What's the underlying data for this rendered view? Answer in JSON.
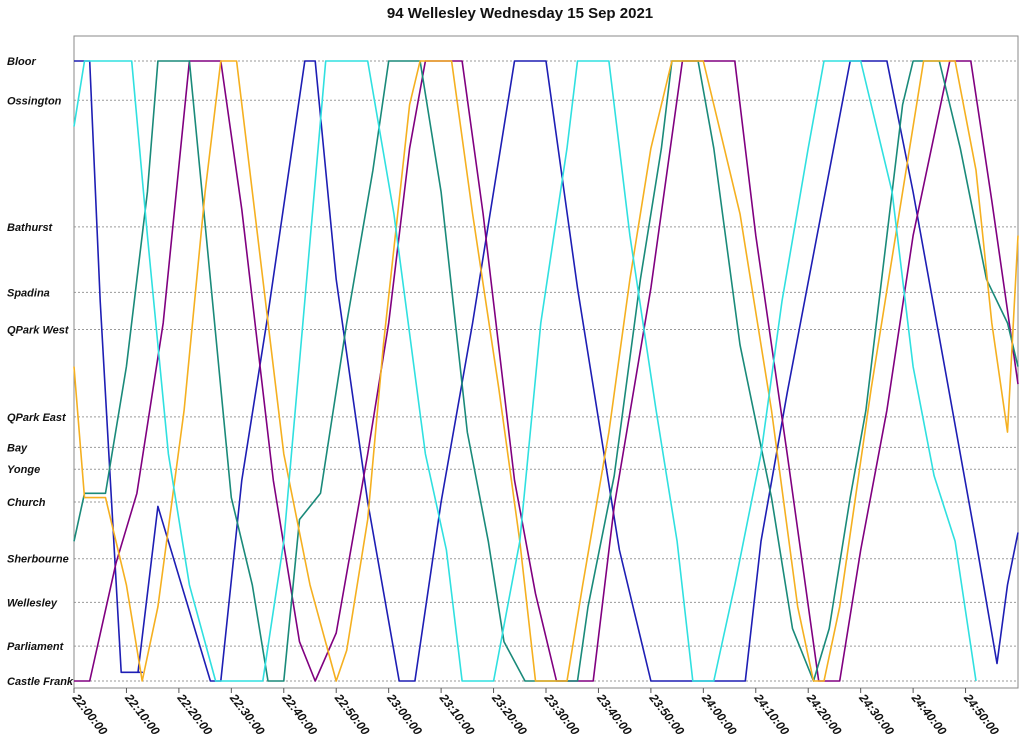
{
  "chart_data": {
    "type": "line",
    "title": "94 Wellesley Wednesday 15 Sep 2021",
    "xlabel": "",
    "ylabel": "",
    "grid": true,
    "x_ticks": [
      "22:00:00",
      "22:10:00",
      "22:20:00",
      "22:30:00",
      "22:40:00",
      "22:50:00",
      "23:00:00",
      "23:10:00",
      "23:20:00",
      "23:30:00",
      "23:40:00",
      "23:50:00",
      "24:00:00",
      "24:10:00",
      "24:20:00",
      "24:30:00",
      "24:40:00",
      "24:50:00"
    ],
    "xlim_minutes": [
      0,
      180
    ],
    "stops": [
      {
        "name": "Bloor",
        "pos": 0
      },
      {
        "name": "Ossington",
        "pos": 0.9
      },
      {
        "name": "Bathurst",
        "pos": 3.8
      },
      {
        "name": "Spadina",
        "pos": 5.3
      },
      {
        "name": "QPark West",
        "pos": 6.15
      },
      {
        "name": "QPark East",
        "pos": 8.15
      },
      {
        "name": "Bay",
        "pos": 8.85
      },
      {
        "name": "Yonge",
        "pos": 9.35
      },
      {
        "name": "Church",
        "pos": 10.1
      },
      {
        "name": "Sherbourne",
        "pos": 11.4
      },
      {
        "name": "Wellesley",
        "pos": 12.4
      },
      {
        "name": "Parliament",
        "pos": 13.4
      },
      {
        "name": "Castle Frank",
        "pos": 14.2
      }
    ],
    "series": [
      {
        "color": "#1e1eb4",
        "points": [
          [
            -1,
            0.0
          ],
          [
            3,
            0.0
          ],
          [
            5,
            5.5
          ],
          [
            9,
            14.0
          ],
          [
            13,
            14.0
          ],
          [
            12.2,
            14.0
          ],
          [
            16,
            10.2
          ],
          [
            26,
            14.2
          ],
          [
            28,
            14.2
          ],
          [
            32,
            9.6
          ],
          [
            37,
            5.8
          ],
          [
            44,
            0.0
          ],
          [
            46,
            0.0
          ],
          [
            50,
            5.0
          ],
          [
            56,
            10.1
          ],
          [
            62,
            14.2
          ],
          [
            65,
            14.2
          ],
          [
            70,
            10.1
          ],
          [
            76,
            6.0
          ],
          [
            84,
            0.0
          ],
          [
            90,
            0.0
          ],
          [
            96,
            5.2
          ],
          [
            104,
            11.2
          ],
          [
            110,
            14.2
          ],
          [
            128,
            14.2
          ],
          [
            131,
            11.0
          ],
          [
            136,
            7.6
          ],
          [
            142,
            3.8
          ],
          [
            148,
            0.0
          ],
          [
            155,
            0.0
          ],
          [
            160,
            3.0
          ],
          [
            166,
            7.0
          ],
          [
            172,
            11.0
          ],
          [
            176,
            13.8
          ],
          [
            178,
            12.0
          ],
          [
            181,
            10.8
          ]
        ]
      },
      {
        "color": "#800080",
        "points": [
          [
            -1,
            14.2
          ],
          [
            3,
            14.2
          ],
          [
            8,
            11.5
          ],
          [
            12,
            9.9
          ],
          [
            17,
            6.0
          ],
          [
            22,
            0.0
          ],
          [
            25,
            0.0
          ],
          [
            28,
            0.0
          ],
          [
            32,
            3.4
          ],
          [
            38,
            9.6
          ],
          [
            43,
            13.3
          ],
          [
            46,
            14.2
          ],
          [
            50,
            13.1
          ],
          [
            56,
            9.0
          ],
          [
            60,
            6.0
          ],
          [
            64,
            2.0
          ],
          [
            67,
            0.0
          ],
          [
            74,
            0.0
          ],
          [
            78,
            3.5
          ],
          [
            84,
            9.6
          ],
          [
            88,
            12.2
          ],
          [
            92,
            14.2
          ],
          [
            99,
            14.2
          ],
          [
            103,
            10.2
          ],
          [
            110,
            5.2
          ],
          [
            116,
            0.0
          ],
          [
            126,
            0.0
          ],
          [
            130,
            4.0
          ],
          [
            136,
            9.0
          ],
          [
            142,
            14.2
          ],
          [
            146,
            14.2
          ],
          [
            150,
            11.2
          ],
          [
            155,
            8.0
          ],
          [
            160,
            4.0
          ],
          [
            167,
            0.0
          ],
          [
            171,
            0.0
          ],
          [
            175,
            3.2
          ],
          [
            180,
            7.4
          ]
        ]
      },
      {
        "color": "#1a8a7a",
        "points": [
          [
            -1,
            11.0
          ],
          [
            2,
            9.9
          ],
          [
            6,
            9.9
          ],
          [
            10,
            7.0
          ],
          [
            14,
            3.0
          ],
          [
            16,
            0.0
          ],
          [
            22,
            0.0
          ],
          [
            26,
            5.0
          ],
          [
            30,
            10.0
          ],
          [
            34,
            12.0
          ],
          [
            37,
            14.2
          ],
          [
            40,
            14.2
          ],
          [
            43,
            10.5
          ],
          [
            47,
            9.9
          ],
          [
            52,
            6.0
          ],
          [
            57,
            2.5
          ],
          [
            60,
            0.0
          ],
          [
            66,
            0.0
          ],
          [
            70,
            3.0
          ],
          [
            75,
            8.5
          ],
          [
            79,
            11.0
          ],
          [
            82,
            13.3
          ],
          [
            86,
            14.2
          ],
          [
            96,
            14.2
          ],
          [
            98,
            12.5
          ],
          [
            103,
            9.5
          ],
          [
            108,
            5.0
          ],
          [
            112,
            2.0
          ],
          [
            114,
            0.0
          ],
          [
            119,
            0.0
          ],
          [
            122,
            2.0
          ],
          [
            127,
            6.5
          ],
          [
            133,
            10.0
          ],
          [
            137,
            13.0
          ],
          [
            141,
            14.2
          ],
          [
            144,
            13.0
          ],
          [
            148,
            10.0
          ],
          [
            151,
            8.0
          ],
          [
            155,
            4.0
          ],
          [
            158,
            1.0
          ],
          [
            160,
            0.0
          ],
          [
            165,
            0.0
          ],
          [
            169,
            2.0
          ],
          [
            174,
            5.0
          ],
          [
            178,
            6.0
          ],
          [
            181,
            7.0
          ]
        ]
      },
      {
        "color": "#f5b020",
        "points": [
          [
            -1,
            7.0
          ],
          [
            2,
            10.0
          ],
          [
            6,
            10.0
          ],
          [
            10,
            12.0
          ],
          [
            13,
            14.2
          ],
          [
            16,
            12.5
          ],
          [
            21,
            8.0
          ],
          [
            25,
            3.0
          ],
          [
            28,
            0.0
          ],
          [
            31,
            0.0
          ],
          [
            35,
            4.0
          ],
          [
            40,
            9.0
          ],
          [
            45,
            12.0
          ],
          [
            50,
            14.2
          ],
          [
            52,
            13.5
          ],
          [
            56,
            10.5
          ],
          [
            59,
            6.5
          ],
          [
            64,
            1.0
          ],
          [
            66,
            0.0
          ],
          [
            72,
            0.0
          ],
          [
            76,
            3.5
          ],
          [
            81,
            7.5
          ],
          [
            85,
            11.0
          ],
          [
            88,
            14.2
          ],
          [
            94,
            14.2
          ],
          [
            97,
            12.0
          ],
          [
            102,
            8.5
          ],
          [
            106,
            5.0
          ],
          [
            110,
            2.0
          ],
          [
            114,
            0.0
          ],
          [
            120,
            0.0
          ],
          [
            124,
            2.0
          ],
          [
            127,
            3.5
          ],
          [
            133,
            8.0
          ],
          [
            138,
            12.5
          ],
          [
            141,
            14.2
          ],
          [
            143,
            14.2
          ],
          [
            146,
            12.5
          ],
          [
            152,
            7.5
          ],
          [
            158,
            3.0
          ],
          [
            162,
            0.0
          ],
          [
            168,
            0.0
          ],
          [
            172,
            2.5
          ],
          [
            175,
            6.0
          ],
          [
            178,
            8.5
          ],
          [
            181,
            4.0
          ]
        ]
      },
      {
        "color": "#30e0e0",
        "points": [
          [
            -1,
            1.5
          ],
          [
            2,
            0.0
          ],
          [
            4,
            0.0
          ],
          [
            8,
            0.0
          ],
          [
            11,
            0.0
          ],
          [
            14,
            4.0
          ],
          [
            18,
            9.0
          ],
          [
            22,
            12.0
          ],
          [
            27,
            14.2
          ],
          [
            36,
            14.2
          ],
          [
            40,
            11.0
          ],
          [
            44,
            5.5
          ],
          [
            48,
            0.0
          ],
          [
            56,
            0.0
          ],
          [
            61,
            3.5
          ],
          [
            67,
            9.0
          ],
          [
            71,
            11.2
          ],
          [
            74,
            14.2
          ],
          [
            80,
            14.2
          ],
          [
            85,
            11.0
          ],
          [
            89,
            6.0
          ],
          [
            94,
            2.0
          ],
          [
            96,
            0.0
          ],
          [
            102,
            0.0
          ],
          [
            106,
            4.0
          ],
          [
            111,
            8.0
          ],
          [
            115,
            11.0
          ],
          [
            118,
            14.2
          ],
          [
            122,
            14.2
          ],
          [
            126,
            12.0
          ],
          [
            131,
            9.0
          ],
          [
            135,
            5.5
          ],
          [
            140,
            2.0
          ],
          [
            143,
            0.0
          ],
          [
            150,
            0.0
          ],
          [
            156,
            3.0
          ],
          [
            160,
            7.0
          ],
          [
            164,
            9.5
          ],
          [
            168,
            11.0
          ],
          [
            172,
            14.2
          ]
        ]
      }
    ]
  }
}
